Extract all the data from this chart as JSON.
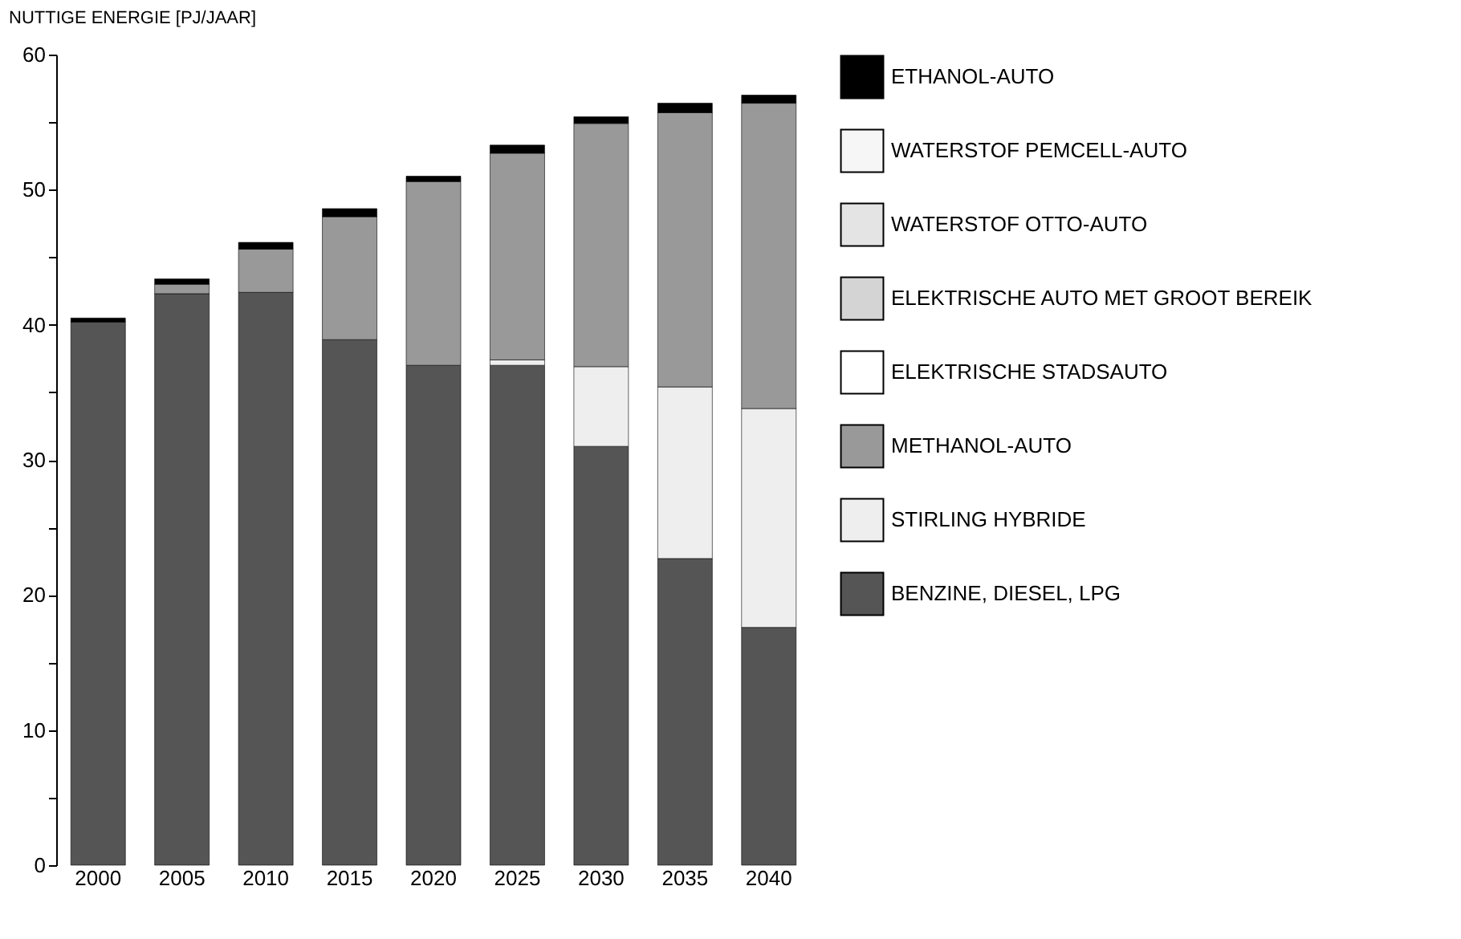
{
  "chart_data": {
    "type": "bar",
    "stacked": true,
    "ylabel": "NUTTIGE ENERGIE [PJ/JAAR]",
    "categories": [
      "2000",
      "2005",
      "2010",
      "2015",
      "2020",
      "2025",
      "2030",
      "2035",
      "2040"
    ],
    "series": [
      {
        "name": "BENZINE, DIESEL, LPG",
        "color": "#555555",
        "values": [
          40.2,
          42.3,
          42.4,
          38.9,
          37.0,
          37.0,
          31.0,
          22.7,
          17.6
        ]
      },
      {
        "name": "STIRLING HYBRIDE",
        "color": "#eeeeee",
        "values": [
          0,
          0,
          0,
          0,
          0,
          0.4,
          5.9,
          12.7,
          16.2
        ]
      },
      {
        "name": "METHANOL-AUTO",
        "color": "#999999",
        "values": [
          0,
          0.7,
          3.2,
          9.1,
          13.6,
          15.3,
          18.0,
          20.3,
          22.6
        ]
      },
      {
        "name": "ELEKTRISCHE STADSAUTO",
        "color": "#ffffff",
        "values": [
          0,
          0,
          0,
          0,
          0,
          0,
          0,
          0,
          0
        ]
      },
      {
        "name": "ELEKTRISCHE AUTO MET GROOT BEREIK",
        "color": "#d4d4d4",
        "values": [
          0,
          0,
          0,
          0,
          0,
          0,
          0,
          0,
          0
        ]
      },
      {
        "name": "WATERSTOF OTTO-AUTO",
        "color": "#e4e4e4",
        "values": [
          0,
          0,
          0,
          0,
          0,
          0,
          0,
          0,
          0
        ]
      },
      {
        "name": "WATERSTOF PEMCELL-AUTO",
        "color": "#f6f6f6",
        "values": [
          0,
          0,
          0,
          0,
          0,
          0,
          0,
          0,
          0
        ]
      },
      {
        "name": "ETHANOL-AUTO",
        "color": "#000000",
        "values": [
          0.3,
          0.4,
          0.5,
          0.6,
          0.4,
          0.6,
          0.5,
          0.7,
          0.6
        ]
      }
    ],
    "ylim": [
      0,
      60
    ],
    "yticks": [
      0,
      {
        "value": 5,
        "label": null
      },
      10,
      {
        "value": 15,
        "label": null
      },
      20,
      {
        "value": 25,
        "label": null
      },
      30,
      {
        "value": 35,
        "label": null
      },
      40,
      {
        "value": 45,
        "label": null
      },
      50,
      {
        "value": 55,
        "label": null
      },
      60
    ],
    "grid": false,
    "legend": "right"
  }
}
